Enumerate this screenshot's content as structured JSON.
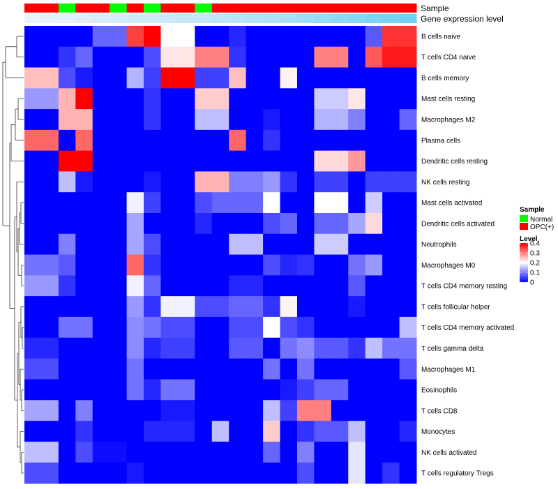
{
  "chart_data": {
    "type": "heatmap",
    "annotation_tracks": [
      {
        "name": "Sample",
        "values": [
          "OPC(+)",
          "OPC(+)",
          "Normal",
          "OPC(+)",
          "OPC(+)",
          "Normal",
          "OPC(+)",
          "Normal",
          "OPC(+)",
          "OPC(+)",
          "Normal",
          "OPC(+)",
          "OPC(+)",
          "OPC(+)",
          "OPC(+)",
          "OPC(+)",
          "OPC(+)",
          "OPC(+)",
          "OPC(+)",
          "OPC(+)",
          "OPC(+)",
          "OPC(+)",
          "OPC(+)"
        ]
      },
      {
        "name": "Gene expression level",
        "values": [
          0.05,
          0.08,
          0.1,
          0.12,
          0.15,
          0.18,
          0.2,
          0.22,
          0.25,
          0.28,
          0.3,
          0.32,
          0.35,
          0.38,
          0.4,
          0.45,
          0.5,
          0.55,
          0.6,
          0.65,
          0.7,
          0.75,
          0.8
        ]
      }
    ],
    "rows": [
      "B cells naive",
      "T cells CD4 naive",
      "B cells memory",
      "Mast cells resting",
      "Macrophages M2",
      "Plasma cells",
      "Dendritic cells resting",
      "NK cells resting",
      "Mast cells activated",
      "Dendritic cells activated",
      "Neutrophils",
      "Macrophages M0",
      "T cells CD4 memory resting",
      "T cells follicular helper",
      "T cells CD4 memory activated",
      "T cells gamma delta",
      "Macrophages M1",
      "Eosinophils",
      "T cells CD8",
      "Monocytes",
      "NK cells activated",
      "T cells regulatory  Tregs"
    ],
    "columns": 23,
    "values": [
      [
        0,
        0,
        0,
        0,
        0.08,
        0.08,
        0.35,
        0.4,
        0.2,
        0.2,
        0,
        0,
        0.03,
        0,
        0,
        0,
        0,
        0,
        0,
        0,
        0.07,
        0.36,
        0.36
      ],
      [
        0,
        0,
        0.04,
        0.08,
        0,
        0,
        0,
        0.06,
        0.22,
        0.22,
        0.3,
        0.3,
        0.04,
        0,
        0,
        0,
        0,
        0.3,
        0.3,
        0,
        0.33,
        0.38,
        0.38
      ],
      [
        0.25,
        0.25,
        0.06,
        0.02,
        0,
        0,
        0.14,
        0.05,
        0.4,
        0.4,
        0.05,
        0.05,
        0.25,
        0,
        0,
        0.21,
        0,
        0,
        0,
        0,
        0,
        0,
        0
      ],
      [
        0.12,
        0.12,
        0.26,
        0.4,
        0,
        0,
        0,
        0.04,
        0,
        0,
        0.24,
        0.24,
        0,
        0,
        0,
        0,
        0,
        0.16,
        0.16,
        0.22,
        0,
        0,
        0
      ],
      [
        0,
        0,
        0.26,
        0.26,
        0,
        0,
        0,
        0.04,
        0,
        0,
        0.15,
        0.15,
        0,
        0,
        0.02,
        0,
        0,
        0.14,
        0.14,
        0.1,
        0,
        0,
        0.08
      ],
      [
        0.32,
        0.32,
        0,
        0.32,
        0,
        0,
        0,
        0,
        0,
        0,
        0,
        0,
        0.32,
        0,
        0.04,
        0,
        0,
        0,
        0,
        0,
        0,
        0,
        0
      ],
      [
        0,
        0,
        0.4,
        0.4,
        0,
        0,
        0,
        0,
        0,
        0,
        0,
        0,
        0,
        0,
        0,
        0,
        0,
        0.23,
        0.23,
        0.28,
        0,
        0,
        0
      ],
      [
        0,
        0,
        0.15,
        0.02,
        0,
        0,
        0,
        0.02,
        0,
        0,
        0.26,
        0.26,
        0.1,
        0.1,
        0.12,
        0.04,
        0,
        0.05,
        0.05,
        0,
        0.05,
        0.05,
        0.05
      ],
      [
        0,
        0,
        0,
        0,
        0,
        0,
        0.19,
        0.05,
        0,
        0,
        0.06,
        0.08,
        0.08,
        0.08,
        0.2,
        0,
        0,
        0.2,
        0.2,
        0,
        0.16,
        0,
        0
      ],
      [
        0,
        0,
        0,
        0,
        0,
        0,
        0.13,
        0,
        0,
        0,
        0.03,
        0,
        0,
        0,
        0.06,
        0.08,
        0,
        0.08,
        0.08,
        0.13,
        0.23,
        0,
        0
      ],
      [
        0,
        0,
        0.1,
        0,
        0,
        0,
        0.13,
        0.06,
        0,
        0,
        0,
        0,
        0.15,
        0.15,
        0,
        0,
        0,
        0.16,
        0.16,
        0,
        0,
        0,
        0
      ],
      [
        0.09,
        0.09,
        0.07,
        0,
        0,
        0,
        0.32,
        0.04,
        0,
        0,
        0,
        0,
        0,
        0,
        0.06,
        0.03,
        0.04,
        0,
        0,
        0.09,
        0.12,
        0,
        0
      ],
      [
        0.12,
        0.12,
        0.04,
        0,
        0,
        0,
        0.19,
        0.08,
        0,
        0,
        0,
        0,
        0.03,
        0.03,
        0,
        0,
        0,
        0,
        0,
        0.07,
        0,
        0,
        0
      ],
      [
        0,
        0,
        0,
        0,
        0,
        0,
        0.12,
        0.04,
        0.19,
        0.19,
        0.06,
        0.06,
        0.08,
        0.08,
        0.04,
        0.21,
        0,
        0,
        0,
        0.02,
        0,
        0,
        0
      ],
      [
        0,
        0,
        0.09,
        0.09,
        0,
        0,
        0.11,
        0.09,
        0.06,
        0.06,
        0,
        0,
        0.06,
        0.06,
        0.2,
        0.06,
        0.04,
        0,
        0,
        0,
        0,
        0,
        0.15
      ],
      [
        0.03,
        0.03,
        0,
        0,
        0,
        0,
        0.11,
        0.03,
        0.05,
        0.05,
        0,
        0,
        0.07,
        0.07,
        0,
        0.09,
        0.11,
        0.07,
        0.07,
        0.04,
        0.15,
        0.09,
        0.09
      ],
      [
        0.06,
        0.06,
        0,
        0,
        0,
        0,
        0.09,
        0,
        0,
        0,
        0,
        0,
        0,
        0,
        0.09,
        0,
        0.09,
        0,
        0,
        0,
        0,
        0,
        0.07
      ],
      [
        0,
        0,
        0,
        0,
        0,
        0,
        0.09,
        0.03,
        0.09,
        0.09,
        0,
        0,
        0,
        0,
        0,
        0.02,
        0.05,
        0.08,
        0.08,
        0,
        0,
        0,
        0
      ],
      [
        0.13,
        0.13,
        0,
        0.1,
        0,
        0,
        0,
        0,
        0.02,
        0.02,
        0,
        0,
        0,
        0,
        0.15,
        0.05,
        0.3,
        0.3,
        0,
        0,
        0,
        0,
        0
      ],
      [
        0,
        0,
        0,
        0.04,
        0,
        0,
        0,
        0.03,
        0.03,
        0.03,
        0,
        0.15,
        0,
        0,
        0.24,
        0,
        0.04,
        0.07,
        0.07,
        0.15,
        0,
        0,
        0.03
      ],
      [
        0.15,
        0.15,
        0,
        0.06,
        0.01,
        0.01,
        0,
        0,
        0,
        0,
        0,
        0,
        0,
        0,
        0.08,
        0,
        0.1,
        0,
        0,
        0.18,
        0,
        0,
        0
      ],
      [
        0.06,
        0.06,
        0,
        0,
        0,
        0,
        0.02,
        0,
        0,
        0,
        0,
        0,
        0,
        0,
        0,
        0,
        0.06,
        0,
        0,
        0.18,
        0,
        0.04,
        0
      ]
    ],
    "legends": [
      {
        "title": "Sample",
        "items": [
          {
            "label": "Normal",
            "color": "#00ff00"
          },
          {
            "label": "OPC(+)",
            "color": "#ff0000"
          }
        ]
      },
      {
        "title": "Level",
        "ticks": [
          0.4,
          0.3,
          0.2,
          0.1,
          0
        ],
        "tick_labels": [
          "0.4",
          "0.3",
          "0.2",
          "0.1",
          "0"
        ],
        "range": [
          0,
          0.4
        ],
        "colors": [
          "#0000ff",
          "#ffffff",
          "#ff0000"
        ]
      }
    ]
  }
}
